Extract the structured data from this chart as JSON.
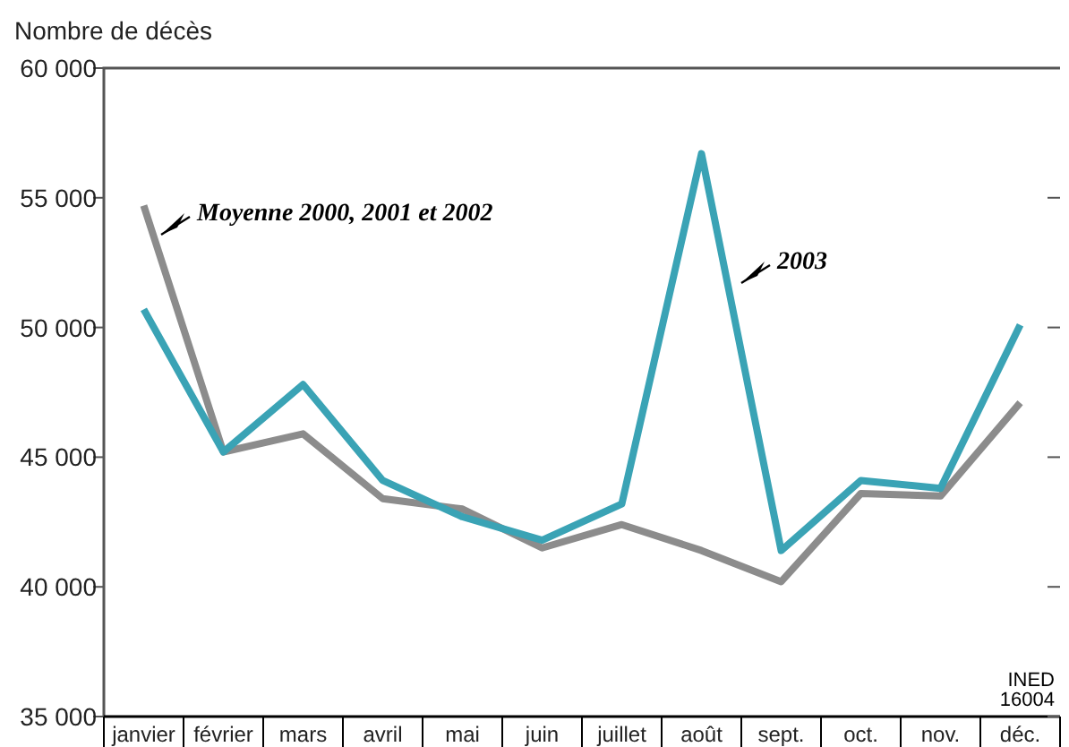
{
  "chart_data": {
    "type": "line",
    "ylabel": "Nombre de décès",
    "categories": [
      "janvier",
      "février",
      "mars",
      "avril",
      "mai",
      "juin",
      "juillet",
      "août",
      "sept.",
      "oct.",
      "nov.",
      "déc."
    ],
    "series": [
      {
        "color": "#8c8c8c",
        "values": [
          54700,
          45200,
          45900,
          43400,
          43000,
          41500,
          42400,
          41400,
          40200,
          43600,
          43500,
          47100
        ]
      },
      {
        "color": "#3aa3b5",
        "values": [
          50700,
          45200,
          47800,
          44100,
          42700,
          41800,
          43200,
          56700,
          41400,
          44100,
          43800,
          50100
        ]
      }
    ],
    "ylim": [
      35000,
      60000
    ],
    "yticks": [
      {
        "value": 35000,
        "label": "35 000"
      },
      {
        "value": 40000,
        "label": "40 000"
      },
      {
        "value": 45000,
        "label": "45 000"
      },
      {
        "value": 50000,
        "label": "50 000"
      },
      {
        "value": 55000,
        "label": "55 000"
      },
      {
        "value": 60000,
        "label": "60 000"
      }
    ],
    "grid": false,
    "marker": "none",
    "line_style": "solid",
    "annotations": [
      "Moyenne 2000, 2001 et 2002",
      "2003",
      "INED\n16004"
    ]
  }
}
